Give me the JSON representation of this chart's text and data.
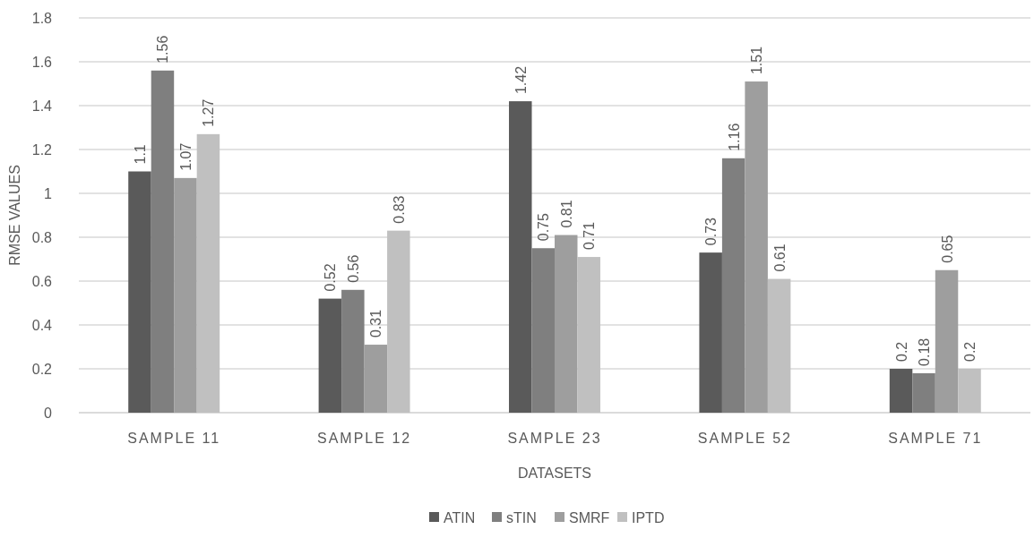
{
  "chart_data": {
    "type": "bar",
    "xlabel": "DATASETS",
    "ylabel": "RMSE VALUES",
    "categories": [
      "SAMPLE 11",
      "SAMPLE 12",
      "SAMPLE 23",
      "SAMPLE 52",
      "SAMPLE 71"
    ],
    "series": [
      {
        "name": "ATIN",
        "color": "#5a5a5a",
        "values": [
          1.1,
          0.52,
          1.42,
          0.73,
          0.2
        ]
      },
      {
        "name": "sTIN",
        "color": "#7f7f7f",
        "values": [
          1.56,
          0.56,
          0.75,
          1.16,
          0.18
        ]
      },
      {
        "name": "SMRF",
        "color": "#9e9e9e",
        "values": [
          1.07,
          0.31,
          0.81,
          1.51,
          0.65
        ]
      },
      {
        "name": "IPTD",
        "color": "#c0c0c0",
        "values": [
          1.27,
          0.83,
          0.71,
          0.61,
          0.2
        ]
      }
    ],
    "ylim": [
      0,
      1.8
    ],
    "yticks": [
      0,
      0.2,
      0.4,
      0.6,
      0.8,
      1,
      1.2,
      1.4,
      1.6,
      1.8
    ],
    "grid": "y",
    "legend": "bottom",
    "data_labels": true
  }
}
